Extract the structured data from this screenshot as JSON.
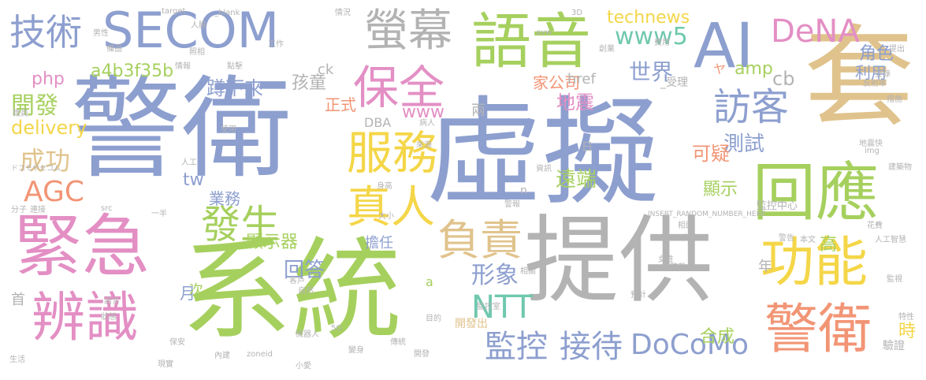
{
  "palette": {
    "blue": "#8d9fcf",
    "green": "#a6d05e",
    "tan": "#e0c38c",
    "gray": "#b3b3b3",
    "pink": "#e38fc4",
    "yellow": "#f4d648",
    "orange": "#f29575",
    "teal": "#6fc8ae"
  },
  "words": {
    "w_jingwei": "警衛",
    "w_xuni": "虛擬",
    "w_tigong": "提供",
    "w_xitong": "系統",
    "w_jinji": "緊急",
    "w_tao": "套",
    "w_secom": "SECOM",
    "w_yuyin": "語音",
    "w_ai": "AI",
    "w_huiying": "回應",
    "w_bianshi": "辨識",
    "w_gongneng": "功能",
    "w_jingwei2": "警衛",
    "w_baoquan": "保全",
    "w_fuwu": "服務",
    "w_yingmu": "螢幕",
    "w_jishu": "技術",
    "w_zhenren": "真人",
    "w_fuze": "負責",
    "w_fasheng": "發生",
    "w_fangke": "訪客",
    "w_jiankong": "監控",
    "w_jiedai": "接待",
    "w_dena": "DeNA",
    "w_www5": "www5",
    "w_ntt": "NTT",
    "w_docomo": "DoCoMo",
    "w_agc": "AGC",
    "w_chenggong": "成功",
    "w_kaifa": "開發",
    "w_php": "php",
    "w_delivery": "delivery",
    "w_hash": "a4b3f35b",
    "w_dunxialai": "蹲下來",
    "w_haitong": "孩童",
    "w_shijie": "世界",
    "w_technews": "technews",
    "w_amp": "amp",
    "w_xianshiqi": "顯示器",
    "w_huida": "回答",
    "w_xingxiang": "形象",
    "w_ceshi": "測試",
    "w_cb": "cb",
    "w_keyi": "可疑",
    "w_jiaose": "角色",
    "w_liyong": "利用",
    "w_dizhen": "地震",
    "w_jiagongsi": "家公司",
    "w_yuanduan": "遠端",
    "w_xianshi": "顯示",
    "w_hecheng": "合成",
    "w_dangren": "擔任",
    "w_yewu": "業務",
    "w_tw": "tw",
    "w_www": "www",
    "w_zhengshi": "正式",
    "w_shi": "時",
    "w_gao": "高",
    "w_nian": "年",
    "w_yue": "月",
    "w_ci": "次",
    "w_shou": "首",
    "w_liang": "兩",
    "w_href": "href",
    "w_ck": "ck",
    "w_dba": "DBA",
    "w_kaifachu": "開發出",
    "w_yanzheng": "驗證",
    "w_shouli": "_受理",
    "w_ri": "日",
    "w_n": "n",
    "w_a": "a",
    "w_ya": "ヤ",
    "w_jiankongzhongxin": "監控中心",
    "w_random": "INSERT_RANDOM_NUMBER_HERE",
    "w_blank": "_blank",
    "w_target": "target",
    "w_img": "img",
    "w_src": "src",
    "w_zoneid": "zoneid",
    "w_5g": "5G",
    "w_avw": "avw",
    "w_3d": "3D",
    "w_docomo_secom": "ドコモやセコム",
    "w_jiankongshi": "監控室",
    "w_ziran": "自然",
    "w_kehu": "客戶",
    "w_shenggao": "身高",
    "w_daxiao": "大小",
    "w_jingbao": "警報",
    "w_anquan": "安全",
    "w_benwen": "本文",
    "w_xiangbi": "相比",
    "w_jingbao2": "警告",
    "w_rengong": "人工",
    "w_rengongzhineng": "人工智慧",
    "w_chuanyin": "傳統",
    "w_dizhenkuai": "地震快",
    "w_jianzhuwu": "建築物",
    "w_nvxing": "女性",
    "w_nanxing": "男性",
    "w_fenzi": "分子",
    "w_lianjie": "連接",
    "w_xitong_small": "生活",
    "w_yiban": "一半",
    "w_jianshi": "監視",
    "w_yusuan": "預計",
    "w_tegan": "特性",
    "w_baoan": "保安",
    "w_neijian": "內建",
    "w_xianshi2": "現實",
    "w_kaifang": "開發",
    "w_xiaoai": "小愛",
    "w_mudi": "目的",
    "w_zhuangtai": "狀態",
    "w_yuyan": "語言",
    "w_bianshen": "變身",
    "w_huahui": "花費",
    "w_zhuancai": "轉載",
    "w_fanshelv": "反射率",
    "w_shou2": "提出",
    "w_denglu": "登錄",
    "w_chuangye": "創業",
    "w_yuhuan": "豫玩",
    "w_yiyong": "費用",
    "w_cuoshi": "措施",
    "w_zhiyuan": "職員",
    "w_shiyong": "使用",
    "w_qingkuang": "情況",
    "w_gongzuo": "工作",
    "w_renlian": "人臉",
    "w_beipin": "備品",
    "w_yuanyin": "原因",
    "w_zhaoxiang": "照相",
    "w_dianji": "點擊",
    "w_qingbao": "情報",
    "w_qiandao": "前導",
    "w_jijiao": "機器人",
    "w_bing": "病人",
    "w_laiyuan": "來源",
    "w_zixun": "資訊",
    "w_xiangmu": "相關"
  }
}
